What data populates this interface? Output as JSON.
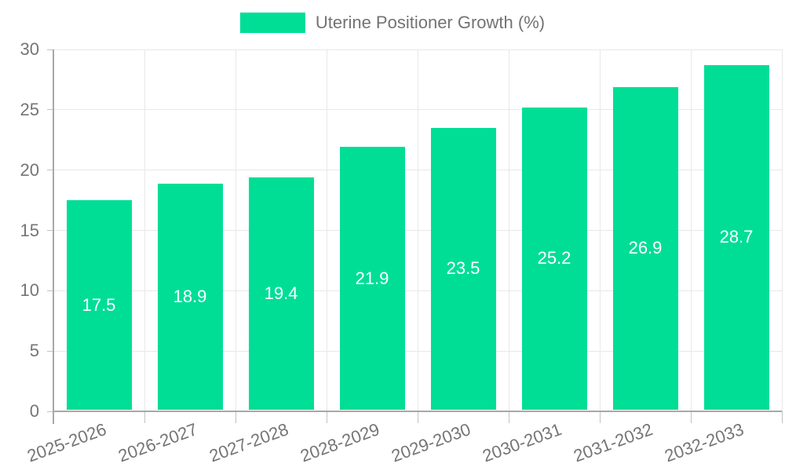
{
  "chart_data": {
    "type": "bar",
    "title": "",
    "categories": [
      "2025-2026",
      "2026-2027",
      "2027-2028",
      "2028-2029",
      "2029-2030",
      "2030-2031",
      "2031-2032",
      "2032-2033"
    ],
    "series": [
      {
        "name": "Uterine Positioner Growth (%)",
        "values": [
          17.5,
          18.9,
          19.4,
          21.9,
          23.5,
          25.2,
          26.9,
          28.7
        ]
      }
    ],
    "xlabel": "",
    "ylabel": "",
    "ylim": [
      0,
      30
    ],
    "yticks": [
      0,
      5,
      10,
      15,
      20,
      25,
      30
    ],
    "grid": true,
    "legend_position": "top",
    "value_labels_inside_bars": true
  },
  "colors": {
    "bar": "#00DE96",
    "value_label": "#FFFFFF",
    "axis_text": "#757575",
    "legend_text": "#737373",
    "axis_line": "#A8A8A8",
    "grid_line": "#E8E8E8",
    "tick_line": "#C2C2C2",
    "background": "#FFFFFF"
  }
}
